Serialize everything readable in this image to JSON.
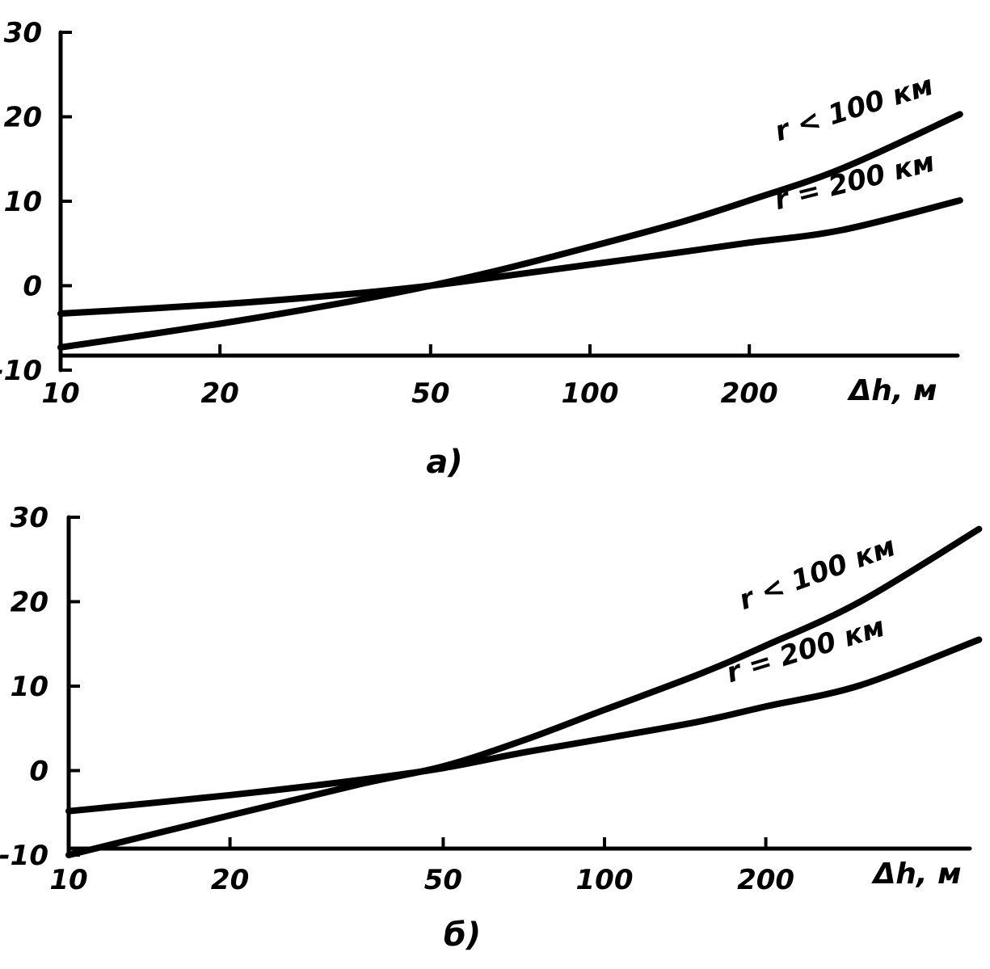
{
  "chart_data": [
    {
      "type": "line",
      "panel": "a)",
      "xlabel": "Δh, м",
      "x_scale": "log",
      "xlim": [
        10,
        500
      ],
      "ylim": [
        -10,
        30
      ],
      "x_ticks": [
        10,
        20,
        50,
        100,
        200
      ],
      "x_tick_labels": [
        "10",
        "20",
        "50",
        "100",
        "200"
      ],
      "y_ticks": [
        -10,
        0,
        10,
        20,
        30
      ],
      "y_tick_labels": [
        "-10",
        "0",
        "10",
        "20",
        "30"
      ],
      "series": [
        {
          "name": "r < 100 км",
          "x": [
            10,
            20,
            35,
            50,
            70,
            100,
            150,
            200,
            300,
            500
          ],
          "y": [
            -7.3,
            -4.5,
            -1.9,
            0,
            2.1,
            4.6,
            7.6,
            10.1,
            13.9,
            20.3
          ]
        },
        {
          "name": "r = 200 км",
          "x": [
            10,
            20,
            35,
            50,
            70,
            100,
            150,
            200,
            300,
            500
          ],
          "y": [
            -3.3,
            -2.2,
            -1.0,
            0,
            1.2,
            2.5,
            4.0,
            5.1,
            6.6,
            10.1
          ]
        }
      ]
    },
    {
      "type": "line",
      "panel": "б)",
      "xlabel": "Δh, м",
      "x_scale": "log",
      "xlim": [
        10,
        500
      ],
      "ylim": [
        -10,
        30
      ],
      "x_ticks": [
        10,
        20,
        50,
        100,
        200
      ],
      "x_tick_labels": [
        "10",
        "20",
        "50",
        "100",
        "200"
      ],
      "y_ticks": [
        -10,
        0,
        10,
        20,
        30
      ],
      "y_tick_labels": [
        "-10",
        "0",
        "10",
        "20",
        "30"
      ],
      "series": [
        {
          "name": "r < 100 км",
          "x": [
            10,
            20,
            35,
            50,
            70,
            100,
            150,
            200,
            300,
            500
          ],
          "y": [
            -10,
            -5.3,
            -1.6,
            0.5,
            3.5,
            7.2,
            11.4,
            14.8,
            20.0,
            28.6
          ]
        },
        {
          "name": "r = 200 км",
          "x": [
            10,
            20,
            35,
            50,
            70,
            100,
            150,
            200,
            300,
            500
          ],
          "y": [
            -4.8,
            -2.9,
            -1.1,
            0.3,
            2.1,
            3.8,
            5.8,
            7.6,
            10.1,
            15.5
          ]
        }
      ]
    }
  ]
}
